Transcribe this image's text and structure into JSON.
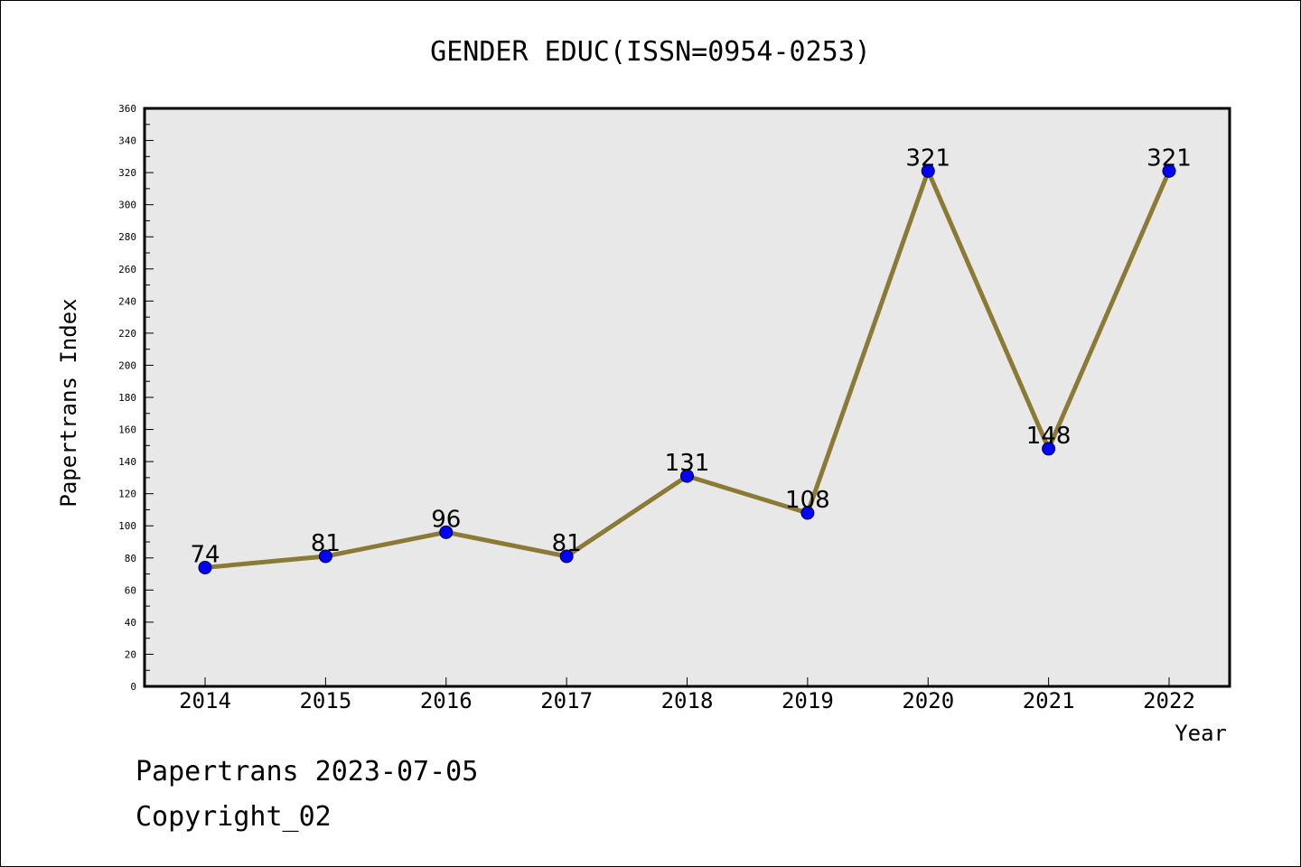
{
  "chart_data": {
    "type": "line",
    "title": "GENDER EDUC(ISSN=0954-0253)",
    "xlabel": "Year",
    "ylabel": "Papertrans Index",
    "x": [
      "2014",
      "2015",
      "2016",
      "2017",
      "2018",
      "2019",
      "2020",
      "2021",
      "2022"
    ],
    "values": [
      74,
      81,
      96,
      81,
      131,
      108,
      321,
      148,
      321
    ],
    "ylim": [
      0,
      360
    ],
    "yticks": [
      0,
      20,
      40,
      60,
      80,
      100,
      120,
      140,
      160,
      180,
      200,
      220,
      240,
      260,
      280,
      300,
      320,
      340,
      360
    ],
    "grid": false,
    "line_color": "#8b7a35",
    "marker_color": "#0000ff",
    "plot_background": "#e8e8e8"
  },
  "footer": {
    "line1": "Papertrans 2023-07-05",
    "line2": "Copyright_02"
  }
}
